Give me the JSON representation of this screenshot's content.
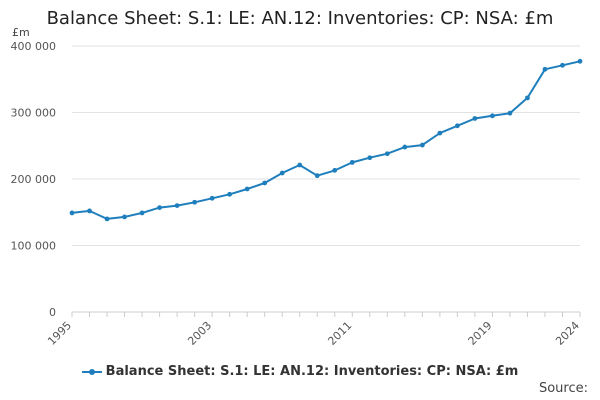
{
  "chart_data": {
    "type": "line",
    "title": "Balance Sheet: S.1: LE: AN.12: Inventories: CP: NSA: £m",
    "ylabel": "£m",
    "xlabel": "",
    "xlim": [
      1995,
      2024
    ],
    "ylim": [
      0,
      400000
    ],
    "y_ticks": [
      0,
      100000,
      200000,
      300000,
      400000
    ],
    "y_tick_labels": [
      "0",
      "100 000",
      "200 000",
      "300 000",
      "400 000"
    ],
    "x_ticks": [
      1995,
      2003,
      2011,
      2019,
      2024
    ],
    "x_tick_labels": [
      "1995",
      "2003",
      "2011",
      "2019",
      "2024"
    ],
    "grid": true,
    "legend_position": "bottom",
    "series": [
      {
        "name": "Balance Sheet: S.1: LE: AN.12: Inventories: CP: NSA: £m",
        "color": "#1f7fbd",
        "x": [
          1995,
          1996,
          1997,
          1998,
          1999,
          2000,
          2001,
          2002,
          2003,
          2004,
          2005,
          2006,
          2007,
          2008,
          2009,
          2010,
          2011,
          2012,
          2013,
          2014,
          2015,
          2016,
          2017,
          2018,
          2019,
          2020,
          2021,
          2022,
          2023,
          2024
        ],
        "y": [
          149000,
          152000,
          140000,
          143000,
          149000,
          157000,
          160000,
          165000,
          171000,
          177000,
          185000,
          194000,
          209000,
          221000,
          205000,
          213000,
          225000,
          232000,
          238000,
          248000,
          251000,
          269000,
          280000,
          291000,
          295000,
          299000,
          322000,
          365000,
          371000,
          377000
        ]
      }
    ]
  },
  "source_label": "Source:"
}
